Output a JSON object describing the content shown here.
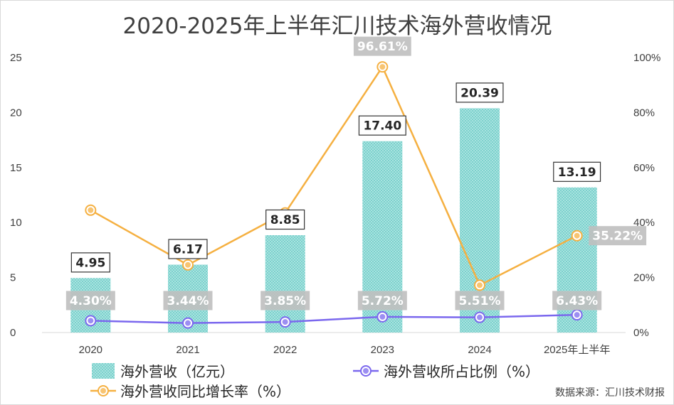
{
  "chart_data": {
    "type": "bar",
    "title": "2020-2025年上半年汇川技术海外营收情况",
    "categories": [
      "2020",
      "2021",
      "2022",
      "2023",
      "2024",
      "2025年上半年"
    ],
    "y_left_ticks": [
      "0",
      "5",
      "10",
      "15",
      "20",
      "25"
    ],
    "y_right_ticks": [
      "0%",
      "20%",
      "40%",
      "60%",
      "80%",
      "100%"
    ],
    "ylim_left": [
      0,
      25
    ],
    "ylim_right": [
      0,
      100
    ],
    "series": [
      {
        "name": "海外营收（亿元）",
        "type": "bar",
        "axis": "left",
        "color": "#7fd3cf",
        "values": [
          4.95,
          6.17,
          8.85,
          17.4,
          20.39,
          13.19
        ],
        "labels": [
          "4.95",
          "6.17",
          "8.85",
          "17.40",
          "20.39",
          "13.19"
        ]
      },
      {
        "name": "海外营收所占比例（%）",
        "type": "line",
        "axis": "right",
        "color": "#7b68ee",
        "values": [
          4.3,
          3.44,
          3.85,
          5.72,
          5.51,
          6.43
        ],
        "labels": [
          "4.30%",
          "3.44%",
          "3.85%",
          "5.72%",
          "5.51%",
          "6.43%"
        ]
      },
      {
        "name": "海外营收同比增长率（%）",
        "type": "line",
        "axis": "right",
        "color": "#f5b041",
        "values": [
          44.5,
          24.6,
          43.5,
          96.61,
          17.2,
          35.22
        ],
        "labels": [
          "",
          "",
          "",
          "96.61%",
          "",
          "35.22%"
        ]
      }
    ],
    "grid": false,
    "legend_position": "bottom",
    "source": "数据来源：汇川技术财报"
  }
}
